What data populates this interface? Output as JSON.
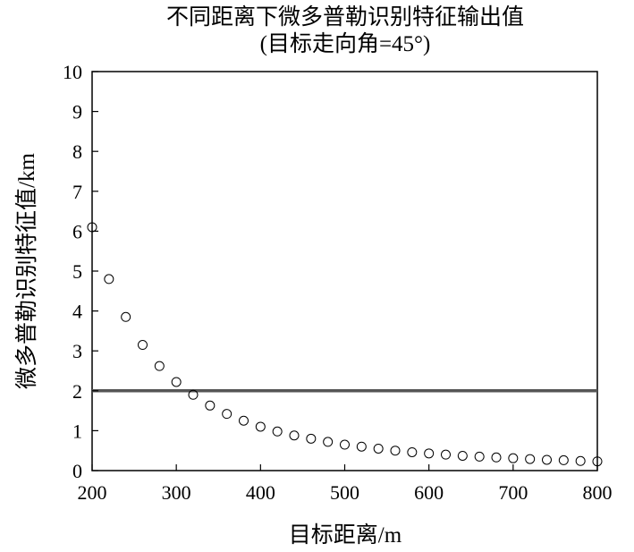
{
  "chart_data": {
    "type": "scatter",
    "title": "不同距离下微多普勒识别特征输出值",
    "subtitle": "(目标走向角=45°)",
    "xlabel": "目标距离/m",
    "ylabel": "微多普勒识别特征值/km",
    "xlim": [
      200,
      800
    ],
    "ylim": [
      0,
      10
    ],
    "xticks": [
      200,
      300,
      400,
      500,
      600,
      700,
      800
    ],
    "yticks": [
      0,
      1,
      2,
      3,
      4,
      5,
      6,
      7,
      8,
      9,
      10
    ],
    "grid": false,
    "threshold": 2.0,
    "series": [
      {
        "marker": "open-circle",
        "x": [
          200,
          220,
          240,
          260,
          280,
          300,
          320,
          340,
          360,
          380,
          400,
          420,
          440,
          460,
          480,
          500,
          520,
          540,
          560,
          580,
          600,
          620,
          640,
          660,
          680,
          700,
          720,
          740,
          760,
          780,
          800
        ],
        "y": [
          6.1,
          4.8,
          3.85,
          3.15,
          2.62,
          2.22,
          1.9,
          1.63,
          1.42,
          1.25,
          1.1,
          0.98,
          0.88,
          0.8,
          0.72,
          0.65,
          0.6,
          0.55,
          0.5,
          0.46,
          0.43,
          0.4,
          0.37,
          0.35,
          0.33,
          0.31,
          0.29,
          0.27,
          0.26,
          0.24,
          0.23
        ]
      }
    ]
  }
}
